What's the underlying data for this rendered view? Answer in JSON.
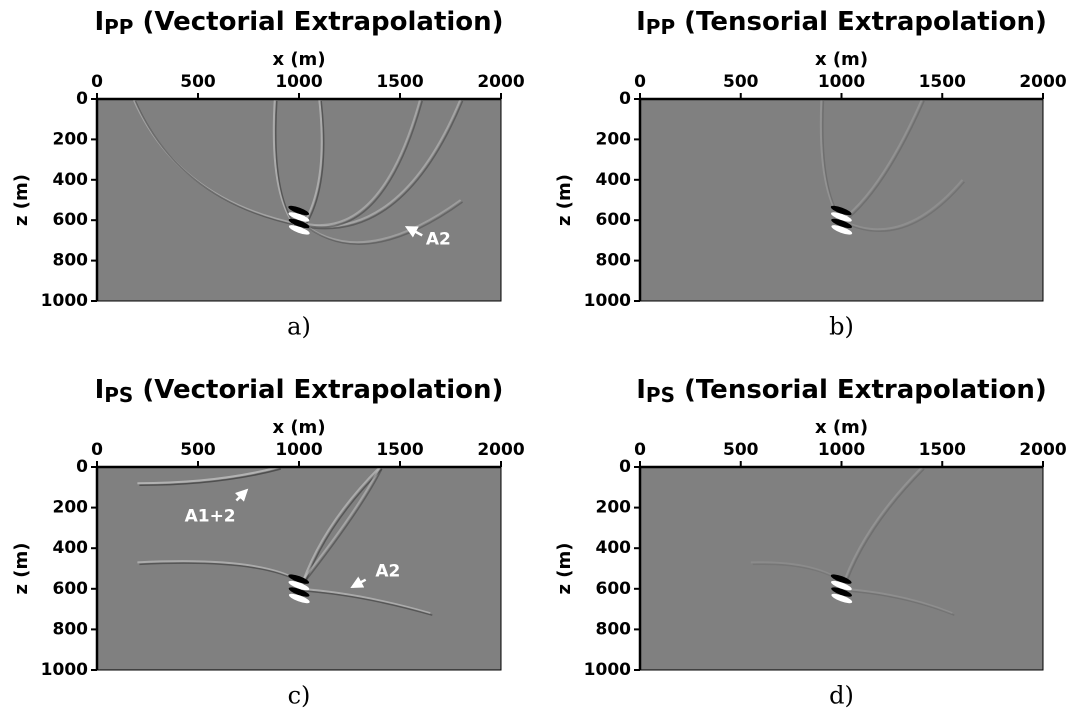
{
  "chart_data": [
    {
      "type": "image",
      "title": {
        "main": "I",
        "sub": "PP",
        "rest": " (Vectorial Extrapolation)"
      },
      "xlabel": "x (m)",
      "ylabel": "z (m)",
      "caption": "a)",
      "xlim": [
        0,
        2000
      ],
      "xticks": [
        0,
        500,
        1000,
        1500,
        2000
      ],
      "ylim": [
        0,
        1000
      ],
      "yticks": [
        0,
        200,
        400,
        600,
        800,
        1000
      ],
      "y_inverted": true,
      "annotations": [
        "A2"
      ]
    },
    {
      "type": "image",
      "title": {
        "main": "I",
        "sub": "PP",
        "rest": " (Tensorial Extrapolation)"
      },
      "xlabel": "x (m)",
      "ylabel": "z (m)",
      "caption": "b)",
      "xlim": [
        0,
        2000
      ],
      "xticks": [
        0,
        500,
        1000,
        1500,
        2000
      ],
      "ylim": [
        0,
        1000
      ],
      "yticks": [
        0,
        200,
        400,
        600,
        800,
        1000
      ],
      "y_inverted": true,
      "annotations": []
    },
    {
      "type": "image",
      "title": {
        "main": "I",
        "sub": "PS",
        "rest": " (Vectorial Extrapolation)"
      },
      "xlabel": "x (m)",
      "ylabel": "z (m)",
      "caption": "c)",
      "xlim": [
        0,
        2000
      ],
      "xticks": [
        0,
        500,
        1000,
        1500,
        2000
      ],
      "ylim": [
        0,
        1000
      ],
      "yticks": [
        0,
        200,
        400,
        600,
        800,
        1000
      ],
      "y_inverted": true,
      "annotations": [
        "A1+2",
        "A2"
      ]
    },
    {
      "type": "image",
      "title": {
        "main": "I",
        "sub": "PS",
        "rest": " (Tensorial Extrapolation)"
      },
      "xlabel": "x (m)",
      "ylabel": "z (m)",
      "caption": "d)",
      "xlim": [
        0,
        2000
      ],
      "xticks": [
        0,
        500,
        1000,
        1500,
        2000
      ],
      "ylim": [
        0,
        1000
      ],
      "yticks": [
        0,
        200,
        400,
        600,
        800,
        1000
      ],
      "y_inverted": true,
      "annotations": []
    }
  ]
}
